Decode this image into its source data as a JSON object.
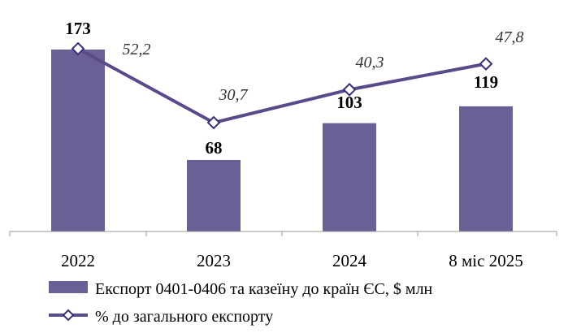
{
  "chart_data": {
    "type": "bar",
    "categories": [
      "2022",
      "2023",
      "2024",
      "8 міс 2025"
    ],
    "series": [
      {
        "name": "Експорт 0401-0406 та  казеїну до країн ЄС, $ млн",
        "type": "bar",
        "values": [
          173,
          68,
          103,
          119
        ],
        "labels": [
          "173",
          "68",
          "103",
          "119"
        ]
      },
      {
        "name": "% до загального експорту",
        "type": "line",
        "values": [
          52.2,
          30.7,
          40.3,
          47.8
        ],
        "labels": [
          "52,2",
          "30,7",
          "40,3",
          "47,8"
        ]
      }
    ],
    "colors": {
      "bar": "#6a6096",
      "line": "#5a4a8c",
      "marker_fill": "#ffffff",
      "axis": "#9a9a9a"
    },
    "grid": false,
    "legend_position": "bottom"
  }
}
